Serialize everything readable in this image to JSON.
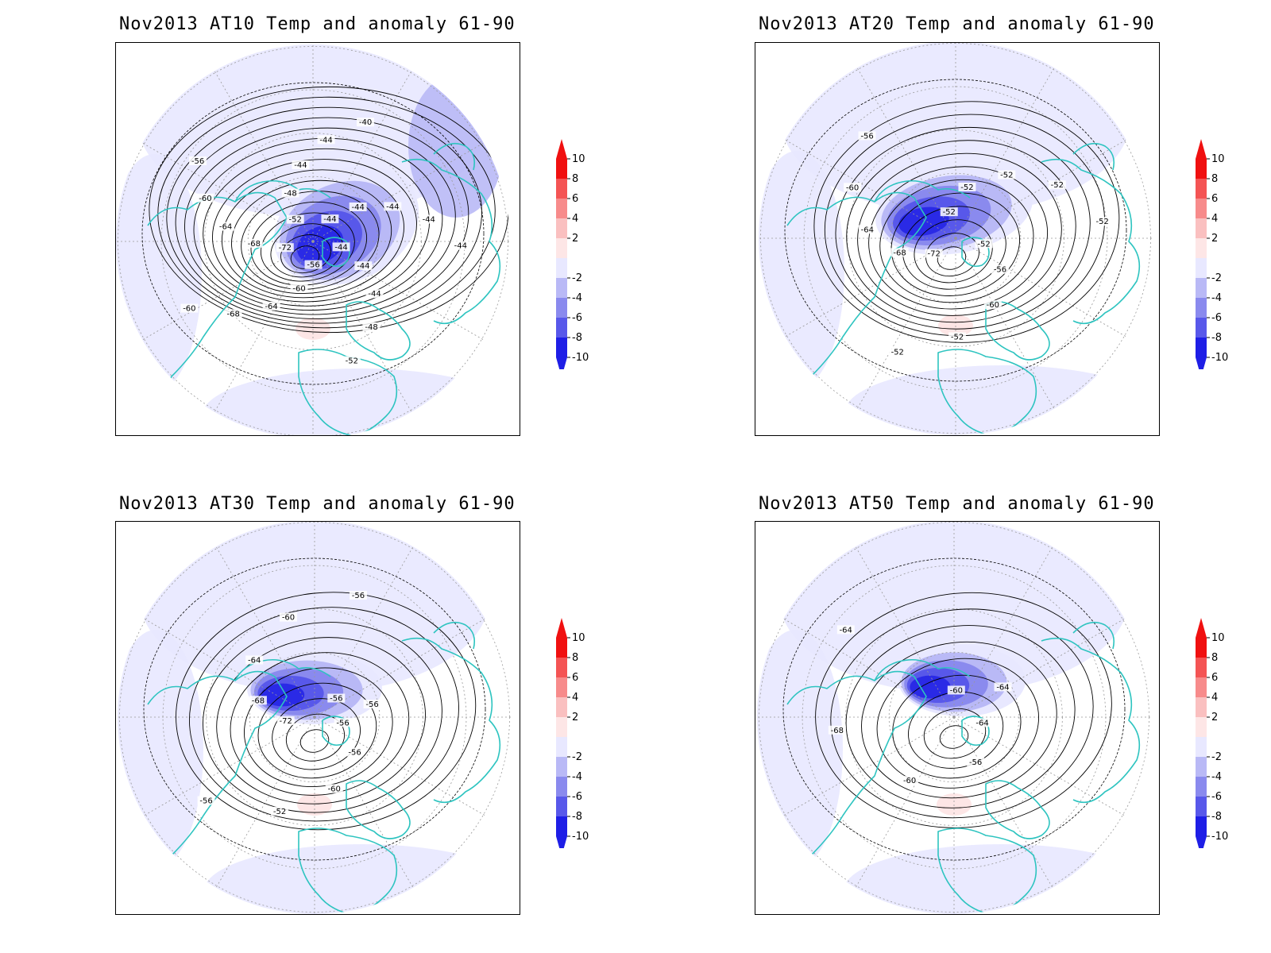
{
  "panels": [
    {
      "title": "Nov2013 AT10 Temp and anomaly 61-90",
      "level": "AT10",
      "contour_labels": [
        "-44",
        "-44",
        "-44",
        "-48",
        "-52",
        "-56",
        "-60",
        "-64",
        "-68",
        "-60",
        "-72",
        "-68",
        "-64",
        "-60",
        "-56",
        "-52",
        "-48",
        "-44",
        "-44",
        "-40",
        "-44",
        "-44",
        "-44",
        "-44",
        "-44"
      ]
    },
    {
      "title": "Nov2013 AT20 Temp and anomaly 61-90",
      "level": "AT20",
      "contour_labels": [
        "-52",
        "-56",
        "-60",
        "-52",
        "-52",
        "-72",
        "-68",
        "-64",
        "-60",
        "-56",
        "-52",
        "-52",
        "-52",
        "-52",
        "-52"
      ]
    },
    {
      "title": "Nov2013 AT30 Temp and anomaly 61-90",
      "level": "AT30",
      "contour_labels": [
        "-56",
        "-56",
        "-60",
        "-52",
        "-56",
        "-72",
        "-68",
        "-64",
        "-60",
        "-56",
        "-56",
        "-56"
      ]
    },
    {
      "title": "Nov2013 AT50 Temp and anomaly 61-90",
      "level": "AT50",
      "contour_labels": [
        "-64",
        "-56",
        "-60",
        "-68",
        "-64",
        "-60",
        "-64"
      ]
    }
  ],
  "colorbar": {
    "ticks": [
      "10",
      "8",
      "6",
      "4",
      "2",
      "-2",
      "-4",
      "-6",
      "-8",
      "-10"
    ],
    "colors": [
      "#f01010",
      "#f45454",
      "#f78b8b",
      "#fac0c0",
      "#fde6e6",
      "#e8e8ff",
      "#b9b9f6",
      "#8a8aee",
      "#5858ea",
      "#1e1ee6"
    ]
  },
  "colors": {
    "coastline": "#2ec4c0",
    "contour": "#000000",
    "gridline": "#999999"
  }
}
